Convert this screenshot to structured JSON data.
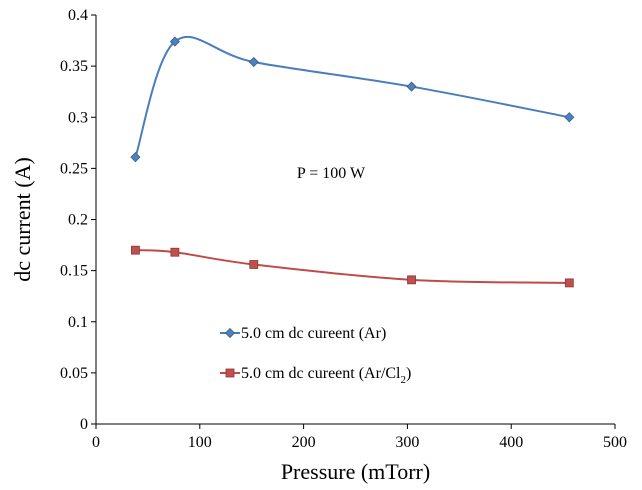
{
  "chart_data": {
    "type": "line",
    "title": "",
    "xlabel": "Pressure (mTorr)",
    "ylabel": "dc current (A)",
    "xlim": [
      0,
      500
    ],
    "ylim": [
      0,
      0.4
    ],
    "xticks": [
      "0",
      "100",
      "200",
      "300",
      "400",
      "500"
    ],
    "yticks": [
      "0",
      "0.05",
      "0.1",
      "0.15",
      "0.2",
      "0.25",
      "0.3",
      "0.35",
      "0.4"
    ],
    "grid": false,
    "legend_position": "lower-left",
    "annotation": "P = 100 W",
    "series": [
      {
        "name": "5.0 cm dc cureent (Ar)",
        "color": "#4a7ebb",
        "marker": "diamond",
        "marker_color": "#4f81bd",
        "x": [
          38,
          76,
          152,
          304,
          456
        ],
        "y": [
          0.261,
          0.374,
          0.354,
          0.33,
          0.3
        ]
      },
      {
        "name_main": "5.0 cm dc cureent (Ar/Cl",
        "name_sub": "2",
        "name_tail": ")",
        "color": "#be4b48",
        "marker": "square",
        "marker_color": "#c0504d",
        "x": [
          38,
          76,
          152,
          304,
          456
        ],
        "y": [
          0.17,
          0.168,
          0.156,
          0.141,
          0.138
        ]
      }
    ]
  }
}
